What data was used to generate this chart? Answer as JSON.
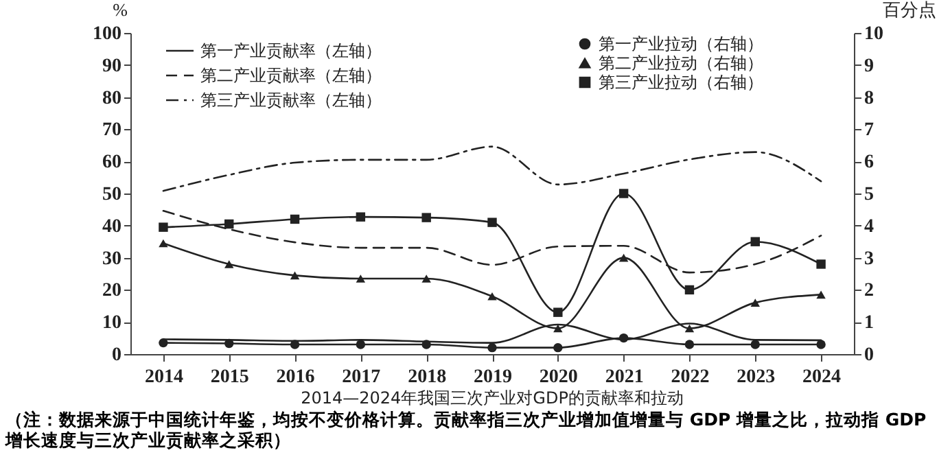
{
  "chart_data": {
    "type": "line",
    "title": "2014—2024年我国三次产业对GDP的贡献率和拉动",
    "categories": [
      "2014",
      "2015",
      "2016",
      "2017",
      "2018",
      "2019",
      "2020",
      "2021",
      "2022",
      "2023",
      "2024"
    ],
    "series": [
      {
        "name": "第一产业贡献率（左轴）",
        "color": "#222222",
        "line_style": "solid",
        "marker": "none",
        "values": [
          4.6,
          4.4,
          4.1,
          4.4,
          3.9,
          3.5,
          9.2,
          4.5,
          9.5,
          4.4,
          4.3
        ]
      },
      {
        "name": "第二产业贡献率（左轴）",
        "color": "#222222",
        "line_style": "dashed",
        "marker": "none",
        "values": [
          44.6,
          38.9,
          34.8,
          33.1,
          33.1,
          27.8,
          33.5,
          33.7,
          25.4,
          28,
          36.9
        ]
      },
      {
        "name": "第三产业贡献率（左轴）",
        "color": "#222222",
        "line_style": "dashdot",
        "marker": "none",
        "values": [
          50.8,
          55.8,
          59.6,
          60.5,
          60.5,
          64.6,
          52.8,
          56.2,
          60.6,
          62.9,
          53.8
        ]
      },
      {
        "name": "第一产业拉动（右轴）",
        "color": "#222222",
        "axis": "y2",
        "line_style": "solid",
        "marker": "circle",
        "values": [
          0.35,
          0.33,
          0.3,
          0.3,
          0.3,
          0.2,
          0.2,
          0.5,
          0.3,
          0.3,
          0.3
        ]
      },
      {
        "name": "第二产业拉动（右轴）",
        "color": "#222222",
        "axis": "y2",
        "line_style": "solid",
        "marker": "triangle",
        "values": [
          3.45,
          2.8,
          2.45,
          2.35,
          2.35,
          1.8,
          0.8,
          3.0,
          0.8,
          1.6,
          1.85
        ]
      },
      {
        "name": "第三产业拉动（右轴）",
        "color": "#222222",
        "axis": "y2",
        "line_style": "solid",
        "marker": "square",
        "values": [
          3.95,
          4.05,
          4.2,
          4.27,
          4.25,
          4.1,
          1.3,
          5.0,
          2.0,
          3.5,
          2.8
        ]
      }
    ],
    "ylabel": "%",
    "y2label": "百分点",
    "ylim": [
      0,
      100
    ],
    "yticks": [
      0,
      10,
      20,
      30,
      40,
      50,
      60,
      70,
      80,
      90,
      100
    ],
    "y2lim": [
      0,
      10
    ],
    "y2ticks": [
      0,
      1,
      2,
      3,
      4,
      5,
      6,
      7,
      8,
      9,
      10
    ],
    "legend": "top",
    "grid": false,
    "annotations": [
      "（注：数据来源于中国统计年鉴，均按不变价格计算。贡献率指三次产业增加值增量与 GDP 增量之比，拉动指 GDP 增长速度与三次产业贡献率之采积）"
    ]
  }
}
